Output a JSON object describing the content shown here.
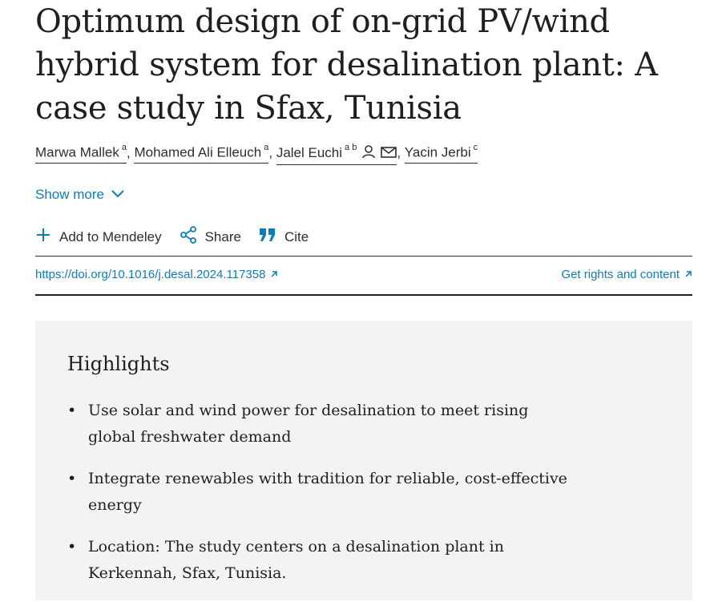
{
  "article": {
    "title": "Optimum design of on-grid PV/wind hybrid system for desalination plant: A case study in Sfax, Tunisia"
  },
  "authors": [
    {
      "name": "Marwa Mallek",
      "aff": "a"
    },
    {
      "name": "Mohamed Ali Elleuch",
      "aff": "a"
    },
    {
      "name": "Jalel Euchi",
      "aff": "a b"
    },
    {
      "name": "Yacin Jerbi",
      "aff": "c"
    }
  ],
  "separator": ",",
  "show_more": "Show more",
  "actions": {
    "mendeley": "Add to Mendeley",
    "share": "Share",
    "cite": "Cite"
  },
  "links": {
    "doi": "https://doi.org/10.1016/j.desal.2024.117358",
    "rights": "Get rights and content"
  },
  "highlights": {
    "title": "Highlights",
    "bullet": "•",
    "items": [
      "Use solar and wind power for desalination to meet rising global freshwater demand",
      "Integrate renewables with tradition for reliable, cost-effective energy",
      "Location: The study centers on a desalination plant in Kerkennah, Sfax, Tunisia."
    ]
  },
  "colors": {
    "link": "#0c7dbb",
    "text": "#1f1f1f",
    "panel": "#f3f3f3"
  }
}
